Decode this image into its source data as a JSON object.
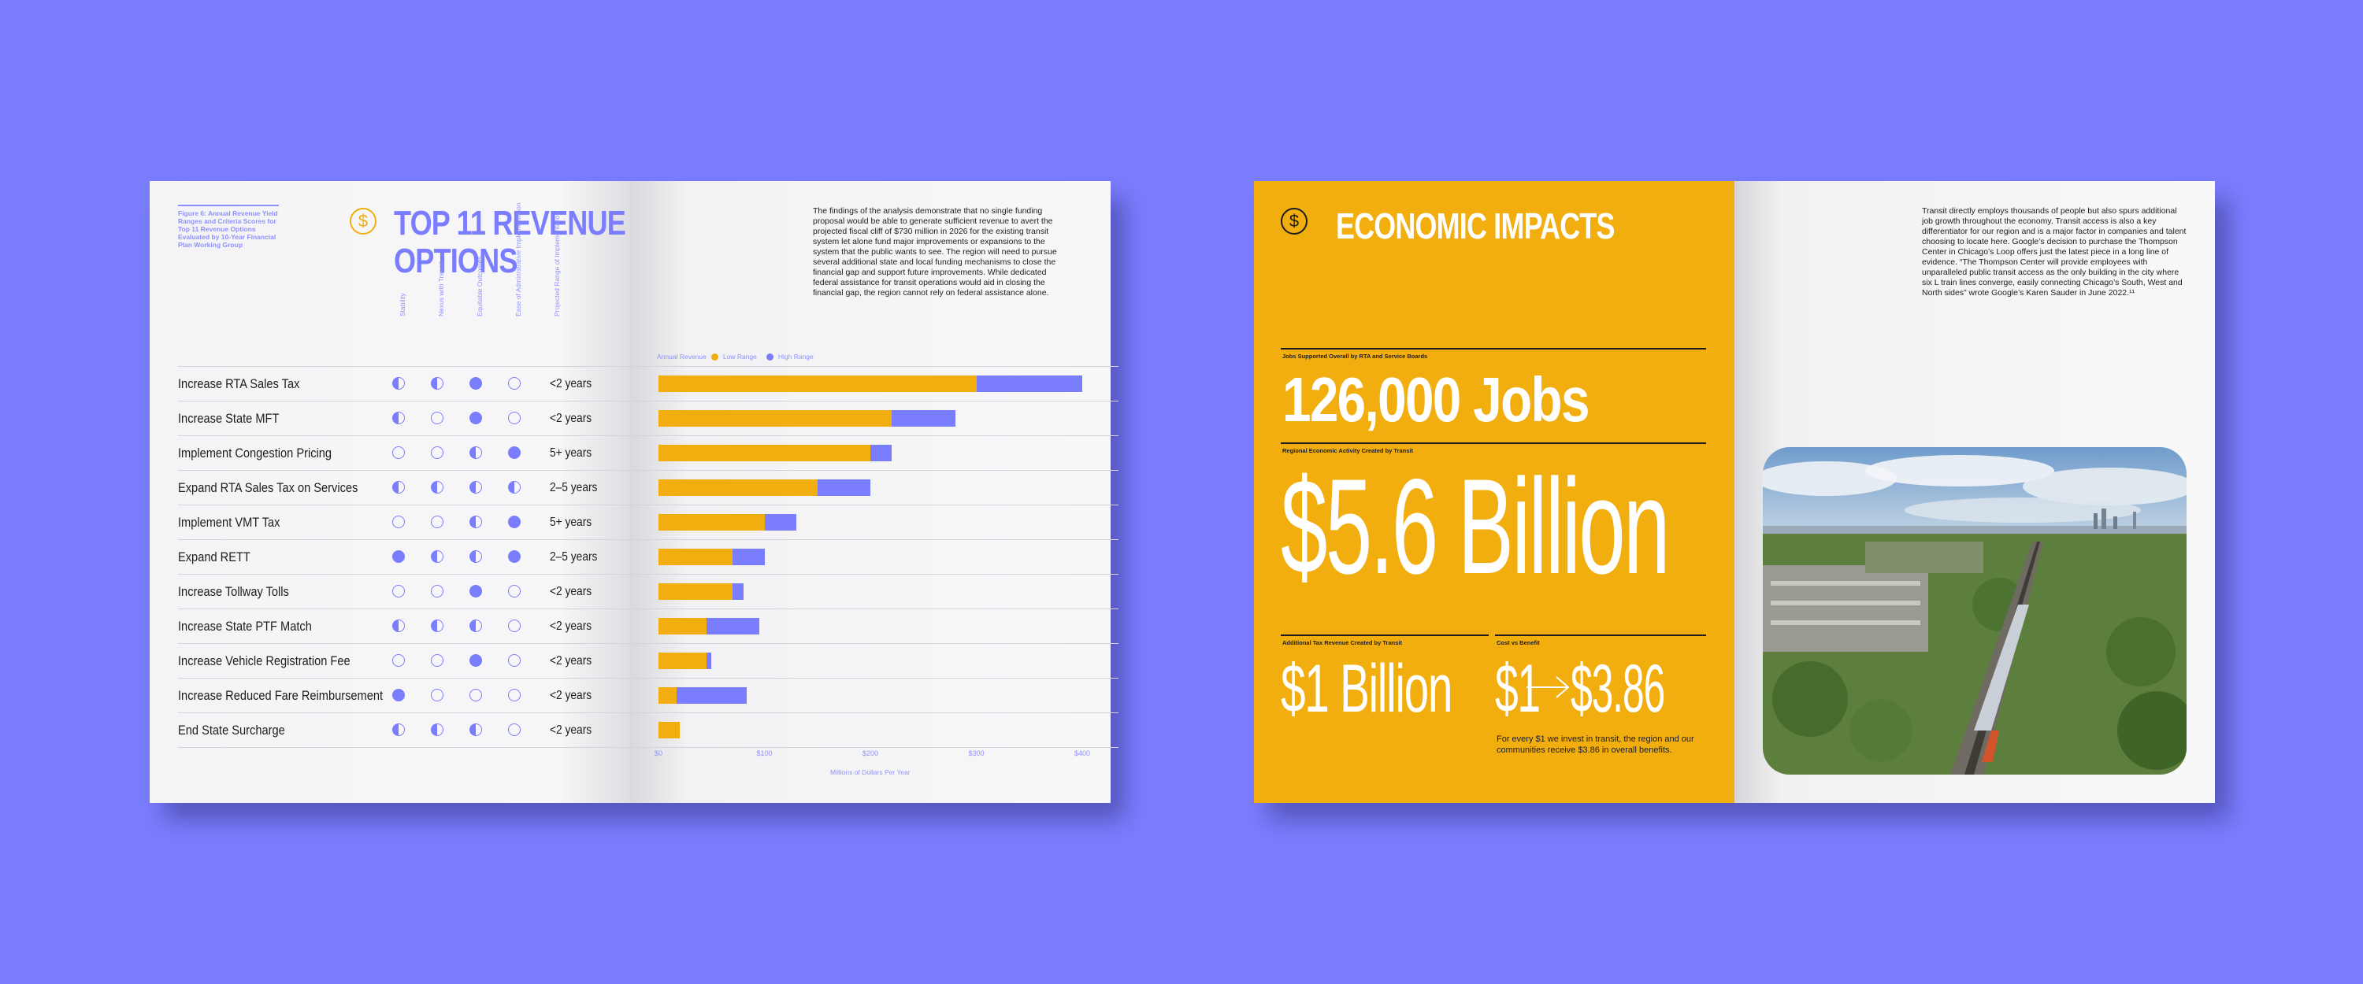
{
  "left_spread": {
    "figure_caption": "Figure 6: Annual Revenue Yield Ranges and Criteria Scores for Top 11 Revenue Options Evaluated by 10-Year Financial Plan Working Group",
    "title_line1": "TOP 11 REVENUE",
    "title_line2": "OPTIONS",
    "dollar_symbol": "$",
    "column_headers": [
      "Stability",
      "Nexus with Transit",
      "Equitable Outcomes",
      "Ease of Administrative Implementation",
      "Projected Range of Implementation"
    ],
    "paragraph": "The findings of the analysis demonstrate that no single funding proposal would be able to generate sufficient revenue to avert the projected fiscal cliff of $730 million in 2026 for the existing transit system let alone fund major improvements or expansions to the system that the public wants to see. The region will need to pursue several additional state and local funding mechanisms to close the financial gap and support future improvements. While dedicated federal assistance for transit operations would aid in closing the financial gap, the region cannot rely on federal assistance alone.",
    "legend": {
      "prefix": "Annual Revenue",
      "low": "Low Range",
      "high": "High Range"
    },
    "colors": {
      "low": "#f2ae0f",
      "high": "#7b7dff"
    }
  },
  "chart_data": {
    "type": "bar",
    "title": "TOP 11 REVENUE OPTIONS",
    "xlabel": "Millions of Dollars Per Year",
    "xticks": [
      "$0",
      "$100",
      "$200",
      "$300",
      "$400"
    ],
    "xlim": [
      0,
      400
    ],
    "categories": [
      "Increase RTA Sales Tax",
      "Increase State MFT",
      "Implement Congestion Pricing",
      "Expand RTA Sales Tax on Services",
      "Implement VMT Tax",
      "Expand RETT",
      "Increase Tollway Tolls",
      "Increase State PTF Match",
      "Increase Vehicle Registration Fee",
      "Increase Reduced Fare Reimbursement",
      "End State Surcharge"
    ],
    "series": [
      {
        "name": "Low Range",
        "values": [
          300,
          220,
          200,
          150,
          100,
          70,
          70,
          45,
          45,
          17,
          20
        ]
      },
      {
        "name": "High Range",
        "values": [
          400,
          280,
          220,
          200,
          130,
          100,
          80,
          95,
          50,
          83,
          20
        ]
      }
    ],
    "scores": [
      [
        "half",
        "half",
        "full",
        "empty"
      ],
      [
        "half",
        "empty",
        "full",
        "empty"
      ],
      [
        "empty",
        "empty",
        "half",
        "full"
      ],
      [
        "half",
        "half",
        "half",
        "half"
      ],
      [
        "empty",
        "empty",
        "half",
        "full"
      ],
      [
        "full",
        "half",
        "half",
        "full"
      ],
      [
        "empty",
        "empty",
        "full",
        "empty"
      ],
      [
        "half",
        "half",
        "half",
        "empty"
      ],
      [
        "empty",
        "empty",
        "full",
        "empty"
      ],
      [
        "full",
        "empty",
        "empty",
        "empty"
      ],
      [
        "half",
        "half",
        "half",
        "empty"
      ]
    ],
    "years": [
      "<2 years",
      "<2 years",
      "5+ years",
      "2–5 years",
      "5+ years",
      "2–5 years",
      "<2 years",
      "<2 years",
      "<2 years",
      "<2 years",
      "<2 years"
    ]
  },
  "right_spread": {
    "title": "ECONOMIC IMPACTS",
    "dollar_symbol": "$",
    "jobs_label": "Jobs Supported Overall by RTA and Service Boards",
    "jobs_value": "126,000 Jobs",
    "activity_label": "Regional Economic Activity Created by Transit",
    "activity_value": "$5.6 Billion",
    "tax_label": "Additional Tax Revenue Created by Transit",
    "tax_value": "$1 Billion",
    "cost_label": "Cost vs Benefit",
    "cost_from": "$1",
    "cost_to": "$3.86",
    "cost_note": "For every $1 we invest in transit, the region and our communities receive $3.86 in overall benefits.",
    "paragraph": "Transit directly employs thousands of people but also spurs additional job growth throughout the economy. Transit access is also a key differentiator for our region and is a major factor in companies and talent choosing to locate here. Google’s decision to purchase the Thompson Center in Chicago’s Loop offers just the latest piece in a long line of evidence. “The Thompson Center will provide employees with unparalleled public transit access as the only building in the city where six L train lines converge, easily connecting Chicago’s South, West and North sides” wrote Google’s Karen Sauder in June 2022.¹¹"
  }
}
